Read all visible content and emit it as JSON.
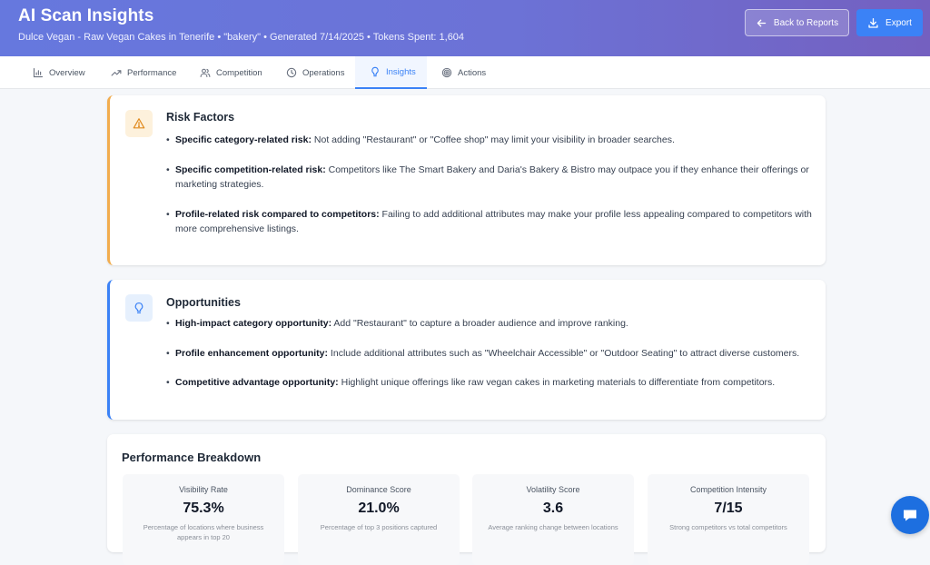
{
  "header": {
    "title": "AI Scan Insights",
    "subtitle": "Dulce Vegan - Raw Vegan Cakes in Tenerife • \"bakery\" • Generated 7/14/2025 • Tokens Spent: 1,604",
    "back_label": "Back to Reports",
    "export_label": "Export"
  },
  "tabs": [
    {
      "label": "Overview",
      "icon": "bar-chart-icon"
    },
    {
      "label": "Performance",
      "icon": "trending-up-icon"
    },
    {
      "label": "Competition",
      "icon": "users-icon"
    },
    {
      "label": "Operations",
      "icon": "clock-icon"
    },
    {
      "label": "Insights",
      "icon": "lightbulb-icon",
      "active": true
    },
    {
      "label": "Actions",
      "icon": "target-icon"
    }
  ],
  "risk": {
    "title": "Risk Factors",
    "icon": "warning-icon",
    "items": [
      {
        "bold": "Specific category-related risk:",
        "text": " Not adding \"Restaurant\" or \"Coffee shop\" may limit your visibility in broader searches."
      },
      {
        "bold": "Specific competition-related risk:",
        "text": " Competitors like The Smart Bakery and Daria's Bakery & Bistro may outpace you if they enhance their offerings or marketing strategies."
      },
      {
        "bold": "Profile-related risk compared to competitors:",
        "text": " Failing to add additional attributes may make your profile less appealing compared to competitors with more comprehensive listings."
      }
    ]
  },
  "opportunities": {
    "title": "Opportunities",
    "icon": "lightbulb-icon",
    "items": [
      {
        "bold": "High-impact category opportunity:",
        "text": " Add \"Restaurant\" to capture a broader audience and improve ranking."
      },
      {
        "bold": "Profile enhancement opportunity:",
        "text": " Include additional attributes such as \"Wheelchair Accessible\" or \"Outdoor Seating\" to attract diverse customers."
      },
      {
        "bold": "Competitive advantage opportunity:",
        "text": " Highlight unique offerings like raw vegan cakes in marketing materials to differentiate from competitors."
      }
    ]
  },
  "performance": {
    "title": "Performance Breakdown",
    "metrics": [
      {
        "label": "Visibility Rate",
        "value": "75.3%",
        "desc": "Percentage of locations where business appears in top 20"
      },
      {
        "label": "Dominance Score",
        "value": "21.0%",
        "desc": "Percentage of top 3 positions captured"
      },
      {
        "label": "Volatility Score",
        "value": "3.6",
        "desc": "Average ranking change between locations"
      },
      {
        "label": "Competition Intensity",
        "value": "7/15",
        "desc": "Strong competitors vs total competitors"
      }
    ]
  },
  "colors": {
    "accent": "#3b82f6",
    "risk_border": "#f2ad4e",
    "chat_button": "#1d6fe0"
  },
  "chat": {
    "icon": "chat-bubble-icon"
  }
}
